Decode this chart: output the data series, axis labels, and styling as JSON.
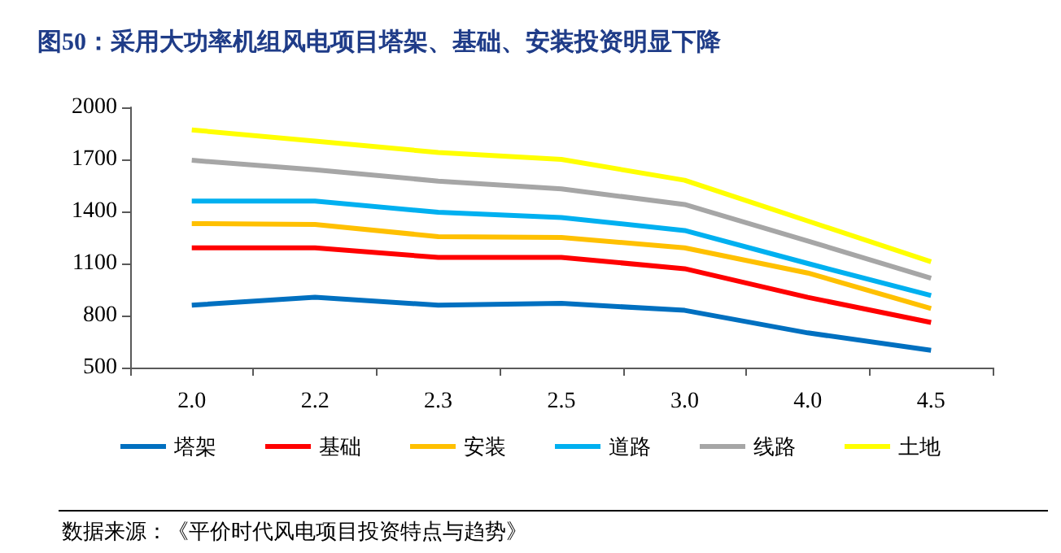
{
  "chart_data": {
    "type": "line",
    "title": "图50：采用大功率机组风电项目塔架、基础、安装投资明显下降",
    "categories": [
      "2.0",
      "2.2",
      "2.3",
      "2.5",
      "3.0",
      "4.0",
      "4.5"
    ],
    "series": [
      {
        "name": "塔架",
        "color": "#0070c0",
        "values": [
          860,
          905,
          860,
          870,
          830,
          700,
          600
        ]
      },
      {
        "name": "基础",
        "color": "#ff0000",
        "values": [
          1190,
          1190,
          1135,
          1135,
          1070,
          905,
          760
        ]
      },
      {
        "name": "安装",
        "color": "#ffc000",
        "values": [
          1330,
          1325,
          1255,
          1250,
          1190,
          1045,
          840
        ]
      },
      {
        "name": "道路",
        "color": "#00b0f0",
        "values": [
          1460,
          1460,
          1395,
          1365,
          1290,
          1100,
          915
        ]
      },
      {
        "name": "线路",
        "color": "#a6a6a6",
        "values": [
          1695,
          1640,
          1575,
          1530,
          1440,
          1230,
          1015
        ]
      },
      {
        "name": "土地",
        "color": "#ffff00",
        "values": [
          1870,
          1805,
          1740,
          1700,
          1580,
          1345,
          1110
        ]
      }
    ],
    "ylim": [
      500,
      2000
    ],
    "yticks": [
      500,
      800,
      1100,
      1400,
      1700,
      2000
    ],
    "grid": false,
    "legend": "bottom",
    "marker": "none",
    "line_style": "solid",
    "annotations": [
      "数据来源：《平价时代风电项目投资特点与趋势》"
    ]
  }
}
